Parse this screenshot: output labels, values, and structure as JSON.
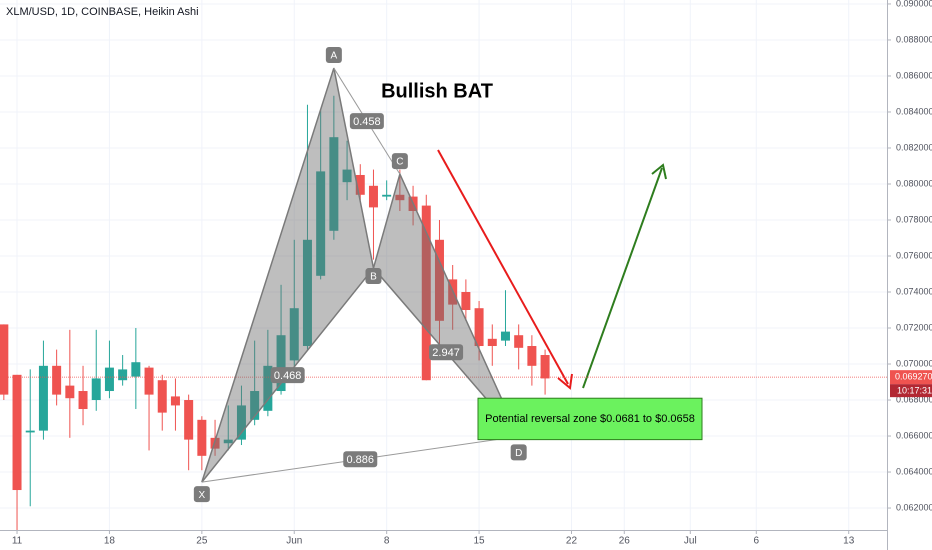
{
  "chart_data": {
    "type": "candlestick",
    "title": "XLM/USD, 1D, COINBASE, Heikin Ashi",
    "annotation": "Bullish BAT",
    "x": [
      130,
      131,
      132,
      133,
      134,
      135,
      136,
      137,
      138,
      139,
      140,
      141,
      142,
      143,
      144,
      145,
      146,
      147,
      148,
      149,
      150,
      151,
      152,
      153,
      154,
      155,
      156,
      157,
      158,
      159,
      160,
      161,
      162,
      163,
      164,
      165,
      166,
      167,
      168,
      169,
      170,
      171
    ],
    "open": [
      0.0722,
      0.0694,
      0.0662,
      0.0663,
      0.0699,
      0.0688,
      0.0685,
      0.068,
      0.0685,
      0.0691,
      0.0693,
      0.0698,
      0.0691,
      0.0682,
      0.068,
      0.0669,
      0.0659,
      0.0656,
      0.0658,
      0.0669,
      0.0674,
      0.0685,
      0.0702,
      0.071,
      0.0749,
      0.0774,
      0.0801,
      0.0805,
      0.0799,
      0.0793,
      0.0794,
      0.0793,
      0.0788,
      0.0769,
      0.0747,
      0.074,
      0.0731,
      0.0714,
      0.0713,
      0.0716,
      0.071,
      0.0705
    ],
    "high": [
      0.0722,
      0.0694,
      0.0697,
      0.0713,
      0.0708,
      0.0719,
      0.0699,
      0.0719,
      0.0713,
      0.0705,
      0.072,
      0.0699,
      0.0694,
      0.0692,
      0.0683,
      0.0671,
      0.0669,
      0.0677,
      0.0688,
      0.0713,
      0.0719,
      0.0744,
      0.0769,
      0.0844,
      0.0841,
      0.0849,
      0.0824,
      0.0811,
      0.0808,
      0.0802,
      0.0808,
      0.0799,
      0.0794,
      0.078,
      0.0755,
      0.0747,
      0.0735,
      0.0722,
      0.0741,
      0.0722,
      0.0716,
      0.0708
    ],
    "low": [
      0.068,
      0.0607,
      0.0621,
      0.0658,
      0.0677,
      0.0659,
      0.0666,
      0.0674,
      0.0681,
      0.0688,
      0.0675,
      0.0652,
      0.0663,
      0.0663,
      0.0641,
      0.0641,
      0.0649,
      0.0652,
      0.0655,
      0.0666,
      0.0671,
      0.0683,
      0.0699,
      0.0708,
      0.0747,
      0.0769,
      0.0791,
      0.0791,
      0.0758,
      0.0791,
      0.0785,
      0.0777,
      0.0691,
      0.071,
      0.0719,
      0.0724,
      0.0702,
      0.0699,
      0.071,
      0.0697,
      0.0688,
      0.0683
    ],
    "close": [
      0.0683,
      0.063,
      0.0663,
      0.0699,
      0.0683,
      0.0681,
      0.0675,
      0.0692,
      0.0698,
      0.0697,
      0.0701,
      0.0683,
      0.0673,
      0.0677,
      0.0658,
      0.0649,
      0.0653,
      0.0658,
      0.0677,
      0.0685,
      0.0699,
      0.0716,
      0.0731,
      0.0769,
      0.0807,
      0.0826,
      0.0808,
      0.0794,
      0.0787,
      0.0794,
      0.0791,
      0.0785,
      0.0691,
      0.0724,
      0.0733,
      0.073,
      0.071,
      0.071,
      0.0718,
      0.0709,
      0.0699,
      0.0692
    ],
    "up_color": "#26a69a",
    "down_color": "#ef5350",
    "xlim": [
      129.71,
      196.9
    ],
    "ylim": [
      0.06078,
      0.09022
    ],
    "xticks": [
      {
        "value": 131,
        "label": "11"
      },
      {
        "value": 138,
        "label": "18"
      },
      {
        "value": 145,
        "label": "25"
      },
      {
        "value": 152,
        "label": "Jun"
      },
      {
        "value": 159,
        "label": "8"
      },
      {
        "value": 166,
        "label": "15"
      },
      {
        "value": 173,
        "label": "22"
      },
      {
        "value": 177,
        "label": "26"
      },
      {
        "value": 182,
        "label": "Jul"
      },
      {
        "value": 187,
        "label": "6"
      },
      {
        "value": 194,
        "label": "13"
      }
    ],
    "yticks": [
      {
        "value": 0.062,
        "label": "0.062000"
      },
      {
        "value": 0.064,
        "label": "0.064000"
      },
      {
        "value": 0.066,
        "label": "0.066000"
      },
      {
        "value": 0.068,
        "label": "0.068000"
      },
      {
        "value": 0.07,
        "label": "0.070000"
      },
      {
        "value": 0.072,
        "label": "0.072000"
      },
      {
        "value": 0.074,
        "label": "0.074000"
      },
      {
        "value": 0.076,
        "label": "0.076000"
      },
      {
        "value": 0.078,
        "label": "0.078000"
      },
      {
        "value": 0.08,
        "label": "0.080000"
      },
      {
        "value": 0.082,
        "label": "0.082000"
      },
      {
        "value": 0.084,
        "label": "0.084000"
      },
      {
        "value": 0.086,
        "label": "0.086000"
      },
      {
        "value": 0.088,
        "label": "0.088000"
      },
      {
        "value": 0.09,
        "label": "0.090000"
      }
    ],
    "grid": true,
    "last_price": {
      "value": 0.06927,
      "label": "0.069270"
    },
    "countdown": "10:17:31",
    "pattern": {
      "points": [
        {
          "name": "X",
          "x": 145,
          "y": 0.06344
        },
        {
          "name": "A",
          "x": 155,
          "y": 0.08644
        },
        {
          "name": "B",
          "x": 158,
          "y": 0.07533
        },
        {
          "name": "C",
          "x": 160,
          "y": 0.08055
        },
        {
          "name": "D",
          "x": 169,
          "y": 0.06598
        }
      ],
      "ratios": [
        0.458,
        0.468,
        2.947,
        0.886
      ]
    },
    "zone": {
      "label": "Potential reversal zone $0.0681 to $0.0658",
      "top": 0.0681,
      "bottom": 0.0658
    }
  }
}
